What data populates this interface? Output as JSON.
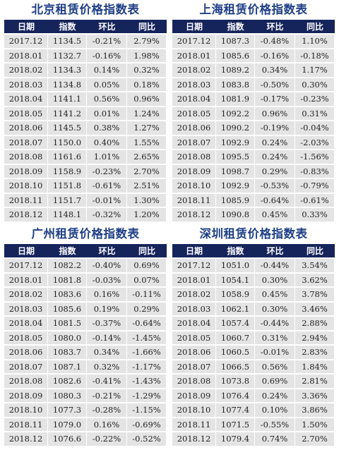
{
  "tables": [
    {
      "title": "北京租赁价格指数表",
      "headers": [
        "日期",
        "指数",
        "环比",
        "同比"
      ],
      "rows": [
        [
          "2017.12",
          "1134.5",
          "-0.21%",
          "2.79%"
        ],
        [
          "2018.01",
          "1132.7",
          "-0.16%",
          "1.98%"
        ],
        [
          "2018.02",
          "1134.3",
          "0.14%",
          "0.32%"
        ],
        [
          "2018.03",
          "1134.8",
          "0.05%",
          "0.18%"
        ],
        [
          "2018.04",
          "1141.1",
          "0.56%",
          "0.96%"
        ],
        [
          "2018.05",
          "1141.2",
          "0.01%",
          "1.24%"
        ],
        [
          "2018.06",
          "1145.5",
          "0.38%",
          "1.27%"
        ],
        [
          "2018.07",
          "1150.0",
          "0.40%",
          "1.55%"
        ],
        [
          "2018.08",
          "1161.6",
          "1.01%",
          "2.65%"
        ],
        [
          "2018.09",
          "1158.9",
          "-0.23%",
          "2.70%"
        ],
        [
          "2018.10",
          "1151.8",
          "-0.61%",
          "2.51%"
        ],
        [
          "2018.11",
          "1151.7",
          "-0.01%",
          "1.30%"
        ],
        [
          "2018.12",
          "1148.1",
          "-0.32%",
          "1.20%"
        ]
      ]
    },
    {
      "title": "上海租赁价格指数表",
      "headers": [
        "日期",
        "指数",
        "环比",
        "同比"
      ],
      "rows": [
        [
          "2017.12",
          "1087.3",
          "-0.48%",
          "1.10%"
        ],
        [
          "2018.01",
          "1085.6",
          "-0.16%",
          "-0.18%"
        ],
        [
          "2018.02",
          "1089.2",
          "0.34%",
          "1.17%"
        ],
        [
          "2018.03",
          "1083.8",
          "-0.50%",
          "0.30%"
        ],
        [
          "2018.04",
          "1081.9",
          "-0.17%",
          "-0.23%"
        ],
        [
          "2018.05",
          "1092.2",
          "0.96%",
          "0.31%"
        ],
        [
          "2018.06",
          "1090.2",
          "-0.19%",
          "-0.04%"
        ],
        [
          "2018.07",
          "1092.9",
          "0.24%",
          "-2.03%"
        ],
        [
          "2018.08",
          "1095.5",
          "0.24%",
          "-1.56%"
        ],
        [
          "2018.09",
          "1098.7",
          "0.29%",
          "-0.83%"
        ],
        [
          "2018.10",
          "1092.9",
          "-0.53%",
          "-0.79%"
        ],
        [
          "2018.11",
          "1085.9",
          "-0.64%",
          "-0.61%"
        ],
        [
          "2018.12",
          "1090.8",
          "0.45%",
          "0.33%"
        ]
      ]
    },
    {
      "title": "广州租赁价格指数表",
      "headers": [
        "日期",
        "指数",
        "环比",
        "同比"
      ],
      "rows": [
        [
          "2017.12",
          "1082.2",
          "-0.40%",
          "0.69%"
        ],
        [
          "2018.01",
          "1081.8",
          "-0.03%",
          "0.07%"
        ],
        [
          "2018.02",
          "1083.6",
          "0.16%",
          "-0.11%"
        ],
        [
          "2018.03",
          "1085.6",
          "0.19%",
          "0.29%"
        ],
        [
          "2018.04",
          "1081.5",
          "-0.37%",
          "-0.64%"
        ],
        [
          "2018.05",
          "1080.0",
          "-0.14%",
          "-1.45%"
        ],
        [
          "2018.06",
          "1083.7",
          "0.34%",
          "-1.66%"
        ],
        [
          "2018.07",
          "1087.1",
          "0.32%",
          "-1.17%"
        ],
        [
          "2018.08",
          "1082.6",
          "-0.41%",
          "-1.43%"
        ],
        [
          "2018.09",
          "1080.3",
          "-0.21%",
          "-1.29%"
        ],
        [
          "2018.10",
          "1077.3",
          "-0.28%",
          "-1.15%"
        ],
        [
          "2018.11",
          "1079.0",
          "0.16%",
          "-0.69%"
        ],
        [
          "2018.12",
          "1076.6",
          "-0.22%",
          "-0.52%"
        ]
      ]
    },
    {
      "title": "深圳租赁价格指数表",
      "headers": [
        "日期",
        "指数",
        "环比",
        "同比"
      ],
      "rows": [
        [
          "2017.12",
          "1051.0",
          "-0.44%",
          "3.54%"
        ],
        [
          "2018.01",
          "1054.1",
          "0.30%",
          "3.62%"
        ],
        [
          "2018.02",
          "1058.9",
          "0.45%",
          "3.78%"
        ],
        [
          "2018.03",
          "1062.1",
          "0.30%",
          "3.46%"
        ],
        [
          "2018.04",
          "1057.4",
          "-0.44%",
          "2.88%"
        ],
        [
          "2018.05",
          "1060.7",
          "0.31%",
          "2.94%"
        ],
        [
          "2018.06",
          "1060.5",
          "-0.01%",
          "2.83%"
        ],
        [
          "2018.07",
          "1066.5",
          "0.56%",
          "1.84%"
        ],
        [
          "2018.08",
          "1073.8",
          "0.69%",
          "2.81%"
        ],
        [
          "2018.09",
          "1076.4",
          "0.24%",
          "3.36%"
        ],
        [
          "2018.10",
          "1077.4",
          "0.10%",
          "3.86%"
        ],
        [
          "2018.11",
          "1071.5",
          "-0.55%",
          "1.50%"
        ],
        [
          "2018.12",
          "1079.4",
          "0.74%",
          "2.70%"
        ]
      ]
    }
  ]
}
